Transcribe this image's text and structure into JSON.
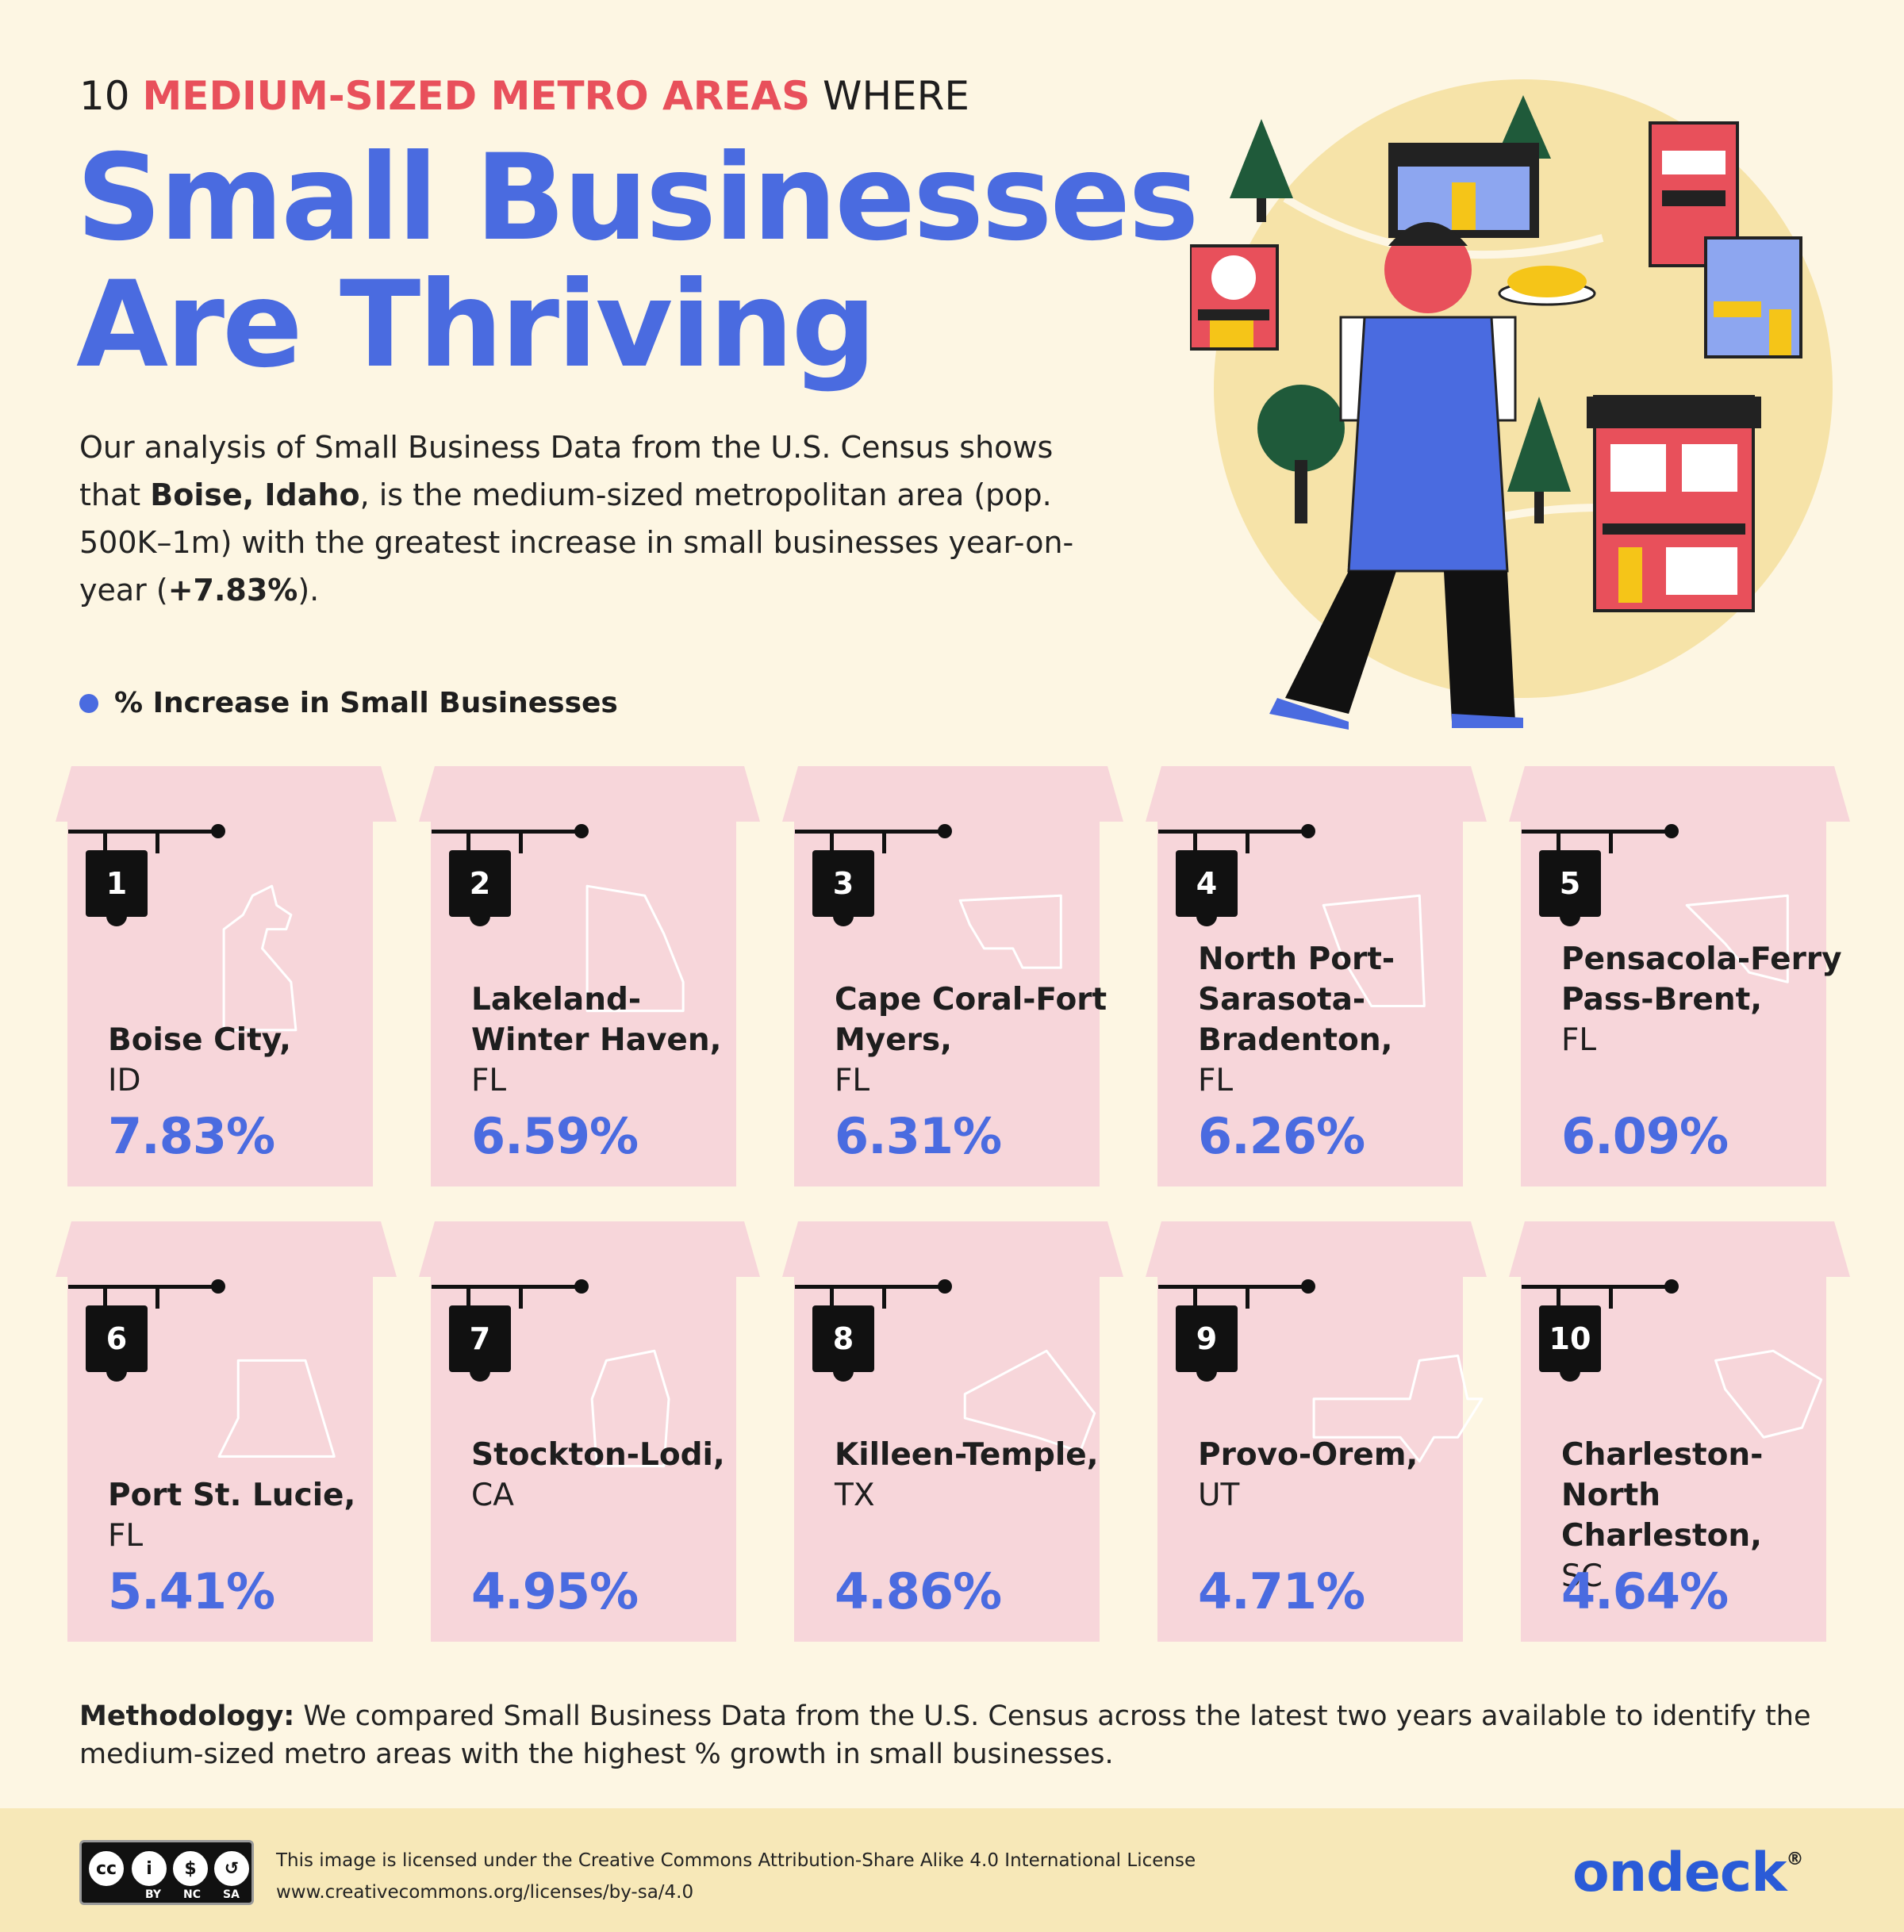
{
  "header": {
    "pre_title_start": "10",
    "pre_title_accent": "MEDIUM-SIZED METRO AREAS",
    "pre_title_end": "WHERE",
    "title_line1": "Small Businesses",
    "title_line2": "Are Thriving"
  },
  "intro": {
    "part1": "Our analysis of Small Business Data from the U.S. Census shows that",
    "bold_city": "Boise, Idaho",
    "part2": ", is the medium-sized metropolitan area (pop. 500K–1m) with the greatest increase in small businesses year-on-year (",
    "bold_pct": "+7.83%",
    "part3": ")."
  },
  "legend": {
    "label": "% Increase in Small Businesses"
  },
  "colors": {
    "accent_blue": "#4a6be0",
    "accent_red": "#e8505b",
    "card_pink": "#f7d6da",
    "background": "#fdf6e3"
  },
  "cards": [
    {
      "rank": "1",
      "name": "Boise City,",
      "state": "ID",
      "value": "7.83%"
    },
    {
      "rank": "2",
      "name": "Lakeland-Winter Haven,",
      "state": "FL",
      "value": "6.59%"
    },
    {
      "rank": "3",
      "name": "Cape Coral-Fort Myers,",
      "state": "FL",
      "value": "6.31%"
    },
    {
      "rank": "4",
      "name": "North Port-Sarasota-Bradenton,",
      "state": "FL",
      "value": "6.26%"
    },
    {
      "rank": "5",
      "name": "Pensacola-Ferry Pass-Brent,",
      "state": "FL",
      "value": "6.09%"
    },
    {
      "rank": "6",
      "name": "Port St. Lucie,",
      "state": "FL",
      "value": "5.41%"
    },
    {
      "rank": "7",
      "name": "Stockton-Lodi,",
      "state": "CA",
      "value": "4.95%"
    },
    {
      "rank": "8",
      "name": "Killeen-Temple,",
      "state": "TX",
      "value": "4.86%"
    },
    {
      "rank": "9",
      "name": "Provo-Orem,",
      "state": "UT",
      "value": "4.71%"
    },
    {
      "rank": "10",
      "name": "Charleston-North Charleston,",
      "state": "SC",
      "value": "4.64%"
    }
  ],
  "methodology": {
    "label": "Methodology:",
    "text": "We compared Small Business Data from the U.S. Census across the latest two years available to identify the medium-sized metro areas with the highest % growth in small businesses."
  },
  "footer": {
    "license_line1": "This image is licensed under the Creative Commons Attribution-Share Alike 4.0 International License",
    "license_line2": "www.creativecommons.org/licenses/by-sa/4.0",
    "cc_labels": [
      "BY",
      "NC",
      "SA"
    ],
    "brand": "ondeck",
    "brand_mark": "®"
  }
}
